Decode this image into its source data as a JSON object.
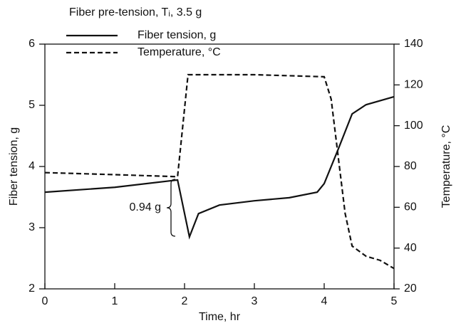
{
  "chart_data": {
    "type": "line",
    "title": "Fiber pre-tension, Tᵢ, 3.5 g",
    "xlabel": "Time, hr",
    "ylabel": "Fiber tension, g",
    "y2label": "Temperature, °C",
    "xlim": [
      0,
      5
    ],
    "xticks": [
      0,
      1,
      2,
      3,
      4,
      5
    ],
    "ylim": [
      2,
      6
    ],
    "yticks": [
      2,
      3,
      4,
      5,
      6
    ],
    "y2lim": [
      20,
      140
    ],
    "y2ticks": [
      20,
      40,
      60,
      80,
      100,
      120,
      140
    ],
    "legend": "upper left",
    "annotation": "0.94 g",
    "series": [
      {
        "name": "Fiber tension, g",
        "color": "#111111",
        "linestyle": "solid",
        "x": [
          0,
          1,
          1.9,
          2.07,
          2.2,
          2.5,
          3,
          3.5,
          3.9,
          4.0,
          4.2,
          4.4,
          4.6,
          5
        ],
        "values": [
          3.58,
          3.66,
          3.78,
          2.85,
          3.23,
          3.37,
          3.44,
          3.49,
          3.58,
          3.72,
          4.28,
          4.86,
          5.01,
          5.14
        ]
      },
      {
        "name": "Temperature, °C",
        "color": "#111111",
        "linestyle": "dashed",
        "axis": "y2",
        "x": [
          0,
          1,
          1.9,
          2.05,
          3,
          4.0,
          4.1,
          4.2,
          4.3,
          4.4,
          4.6,
          4.8,
          5
        ],
        "values": [
          77,
          76,
          75,
          125,
          125,
          124,
          113,
          85,
          57,
          41,
          36,
          34,
          30
        ]
      }
    ]
  }
}
